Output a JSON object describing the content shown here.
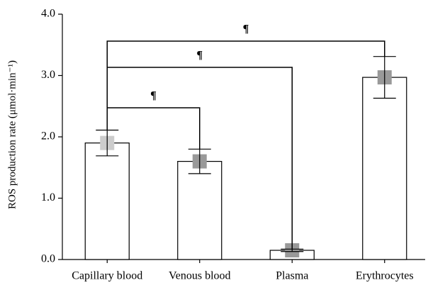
{
  "chart_data": {
    "type": "bar",
    "y_label": "ROS production rate (μmol·min⁻¹)",
    "categories": [
      "Capillary blood",
      "Venous blood",
      "Plasma",
      "Erythrocytes"
    ],
    "values": [
      1.9,
      1.6,
      0.15,
      2.97
    ],
    "errors": [
      0.21,
      0.2,
      0.02,
      0.34
    ],
    "color": "#ffffff",
    "marker_colors": [
      "#cccccc",
      "#999999",
      "#999999",
      "#999999"
    ],
    "ylim": [
      0,
      4.0
    ],
    "yticks": [
      {
        "value": 0,
        "label": "0.0"
      },
      {
        "value": 1,
        "label": "1.0"
      },
      {
        "value": 2,
        "label": "2.0"
      },
      {
        "value": 3,
        "label": "3.0"
      },
      {
        "value": 4,
        "label": "4.0"
      }
    ],
    "annotations": [
      {
        "text": "¶",
        "from": "Capillary blood",
        "to": "Venous blood"
      },
      {
        "text": "¶",
        "from": "Capillary blood",
        "to": "Plasma"
      },
      {
        "text": "¶",
        "from": "Capillary blood",
        "to": "Erythrocytes"
      }
    ]
  }
}
